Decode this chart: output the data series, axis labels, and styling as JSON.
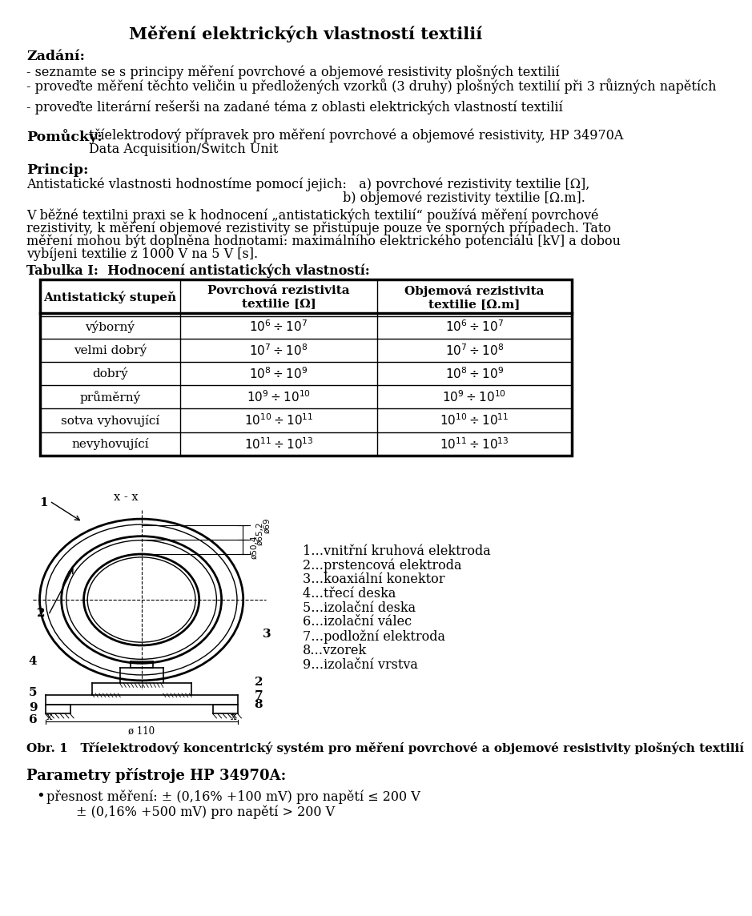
{
  "title": "Měření elektrických vlastností textilií",
  "background_color": "#ffffff",
  "text_color": "#000000",
  "font_family": "DejaVu Serif",
  "zadani_label": "Zadání:",
  "zadani_lines": [
    "- seznamte se s principy měření povrchové a objemové resistivity plošných textilií",
    "- proveďte měření těchto veličin u předložených vzorků (3 druhy) plošných textilií při 3 růizných napětích",
    "- proveďte literární rešerši na zadané téma z oblasti elektrických vlastností textilií"
  ],
  "pomucky_label": "Pomůcky:",
  "pomucky_text1": "tříelektrodový přípravek pro měření povrchové a objemové resistivity, HP 34970A",
  "pomucky_text2": "Data Acquisition/Switch Unit",
  "princip_label": "Princip:",
  "princip_line1": "Antistatické vlastnosti hodnostíme pomocí jejich:   a) povrchové rezistivity textilie [Ω],",
  "princip_line2": "b) objemové rezistivity textilie [Ω.m].",
  "body_line1": "V běžné textilni praxi se k hodnocení „antistatických textilií“ používá měření povrchové",
  "body_line2": "rezistivity, k měření objemové rezistivity se přistupuje pouze ve sporných případech. Tato",
  "body_line3": "měření mohou být doplněna hodnotami: maximálního elektrického potenciálu [kV] a dobou",
  "body_line4": "vybíjeni textilie z 1000 V na 5 V [s].",
  "tabulka_label": "Tabulka I:  Hodnocení antistatických vlastností:",
  "table_header0": "Antistatický stupeň",
  "table_header1": "Povrchová rezistivita\ntextilie [Ω]",
  "table_header2": "Objemová rezistivita\ntextilie [Ω.m]",
  "table_col0": [
    "výborný",
    "velmi dobrý",
    "dobrý",
    "průměrný",
    "sotva vyhovující",
    "nevyhovující"
  ],
  "table_col1": [
    "$10^6 \\div 10^7$",
    "$10^7 \\div 10^8$",
    "$10^8 \\div 10^9$",
    "$10^9 \\div 10^{10}$",
    "$10^{10} \\div 10^{11}$",
    "$10^{11} \\div 10^{13}$"
  ],
  "table_col2": [
    "$10^6 \\div 10^7$",
    "$10^7 \\div 10^8$",
    "$10^8 \\div 10^9$",
    "$10^9 \\div 10^{10}$",
    "$10^{10} \\div 10^{11}$",
    "$10^{11} \\div 10^{13}$"
  ],
  "figure_legend": [
    "1…vnitřní kruhová elektroda",
    "2…prstencová elektroda",
    "3…koaxiální konektor",
    "4…třecí deska",
    "5…izolační deska",
    "6…izolační válec",
    "7…podložní elektroda",
    "8…vzorek",
    "9…izolační vrstva"
  ],
  "obr_caption": "Obr. 1   Tříelektrodový koncentrický systém pro měření povrchové a objemové resistivity plošných textilií",
  "parametry_label": "Parametry přístroje HP 34970A:",
  "bullet1": "přesnost měření: ± (0,16% +100 mV) pro napětí ≤ 200 V",
  "bullet2": "± (0,16% +500 mV) pro napětí > 200 V"
}
